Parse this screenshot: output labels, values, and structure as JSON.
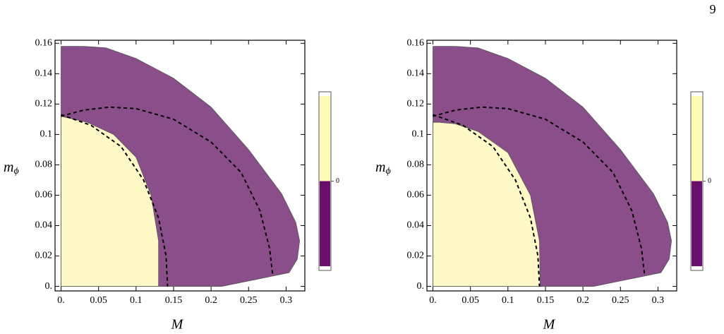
{
  "page_number": "9",
  "chart_data": [
    {
      "type": "region",
      "xlabel": "M",
      "ylabel": "m",
      "ylabel_subscript": "ϕ",
      "xlim": [
        -0.008,
        0.325
      ],
      "ylim": [
        -0.003,
        0.162
      ],
      "xticks": [
        {
          "value": 0,
          "label": "0."
        },
        0.05,
        0.1,
        0.15,
        0.2,
        0.25,
        0.3
      ],
      "yticks": [
        {
          "value": 0,
          "label": "0."
        },
        0.02,
        0.04,
        0.06,
        0.08,
        0.1,
        0.12,
        0.14,
        0.16
      ],
      "colorbar": {
        "colors": [
          "#fffab4",
          "#6a0f6b"
        ],
        "ticks": [
          0
        ]
      },
      "series": [
        {
          "style": "fill",
          "color": "#8a4f8b",
          "x": [
            0,
            0.214,
            0.304,
            0.315,
            0.318,
            0.313,
            0.294,
            0.25,
            0.2,
            0.15,
            0.1,
            0.06,
            0.03,
            0
          ],
          "y": [
            0,
            0,
            0.009,
            0.018,
            0.03,
            0.042,
            0.061,
            0.09,
            0.118,
            0.137,
            0.15,
            0.157,
            0.158,
            0.158
          ]
        },
        {
          "style": "fill",
          "color": "#fff9c8",
          "x": [
            0,
            0.13,
            0.13,
            0.12,
            0.1,
            0.07,
            0.035,
            0
          ],
          "y": [
            0,
            0,
            0.03,
            0.06,
            0.085,
            0.1,
            0.108,
            0.112
          ]
        },
        {
          "style": "dashed",
          "color": "#000000",
          "x": [
            0,
            0.04,
            0.08,
            0.11,
            0.13,
            0.14,
            0.142
          ],
          "y": [
            0.113,
            0.106,
            0.092,
            0.07,
            0.045,
            0.02,
            0
          ]
        },
        {
          "style": "dashed",
          "color": "#000000",
          "x": [
            0,
            0.03,
            0.065,
            0.1,
            0.15,
            0.2,
            0.24,
            0.265,
            0.278,
            0.282
          ],
          "y": [
            0.112,
            0.116,
            0.118,
            0.117,
            0.11,
            0.095,
            0.075,
            0.05,
            0.025,
            0.008
          ]
        }
      ]
    },
    {
      "type": "region",
      "xlabel": "M",
      "ylabel": "m",
      "ylabel_subscript": "ϕ",
      "xlim": [
        -0.008,
        0.325
      ],
      "ylim": [
        -0.003,
        0.162
      ],
      "xticks": [
        {
          "value": 0,
          "label": "0."
        },
        0.05,
        0.1,
        0.15,
        0.2,
        0.25,
        0.3
      ],
      "yticks": [
        {
          "value": 0,
          "label": "0."
        },
        0.02,
        0.04,
        0.06,
        0.08,
        0.1,
        0.12,
        0.14,
        0.16
      ],
      "colorbar": {
        "colors": [
          "#fffab4",
          "#6a0f6b"
        ],
        "ticks": [
          0
        ]
      },
      "series": [
        {
          "style": "fill",
          "color": "#8a4f8b",
          "x": [
            0,
            0.214,
            0.304,
            0.315,
            0.318,
            0.313,
            0.294,
            0.25,
            0.2,
            0.15,
            0.1,
            0.06,
            0.03,
            0
          ],
          "y": [
            0,
            0,
            0.009,
            0.018,
            0.03,
            0.042,
            0.061,
            0.09,
            0.118,
            0.137,
            0.15,
            0.157,
            0.158,
            0.158
          ]
        },
        {
          "style": "fill",
          "color": "#fff9c8",
          "x": [
            0,
            0.143,
            0.142,
            0.13,
            0.1,
            0.06,
            0.03,
            0.008,
            0
          ],
          "y": [
            0,
            0,
            0.03,
            0.06,
            0.088,
            0.102,
            0.107,
            0.108,
            0.108
          ]
        },
        {
          "style": "dashed",
          "color": "#000000",
          "x": [
            0,
            0.04,
            0.08,
            0.11,
            0.13,
            0.14,
            0.142
          ],
          "y": [
            0.113,
            0.106,
            0.092,
            0.07,
            0.045,
            0.02,
            0
          ]
        },
        {
          "style": "dashed",
          "color": "#000000",
          "x": [
            0,
            0.03,
            0.065,
            0.1,
            0.15,
            0.2,
            0.24,
            0.265,
            0.278,
            0.282
          ],
          "y": [
            0.112,
            0.116,
            0.118,
            0.117,
            0.11,
            0.095,
            0.075,
            0.05,
            0.025,
            0.008
          ]
        }
      ]
    }
  ]
}
